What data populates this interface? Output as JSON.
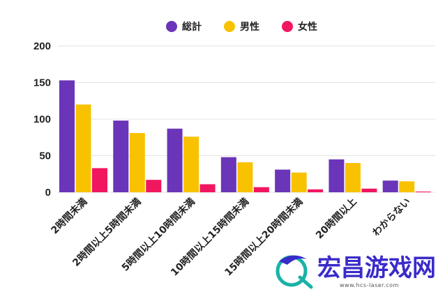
{
  "chart_data": {
    "type": "bar",
    "title": "",
    "xlabel": "",
    "ylabel": "",
    "ylim": [
      0,
      200
    ],
    "yticks": [
      0,
      50,
      100,
      150,
      200
    ],
    "grid": true,
    "legend_position": "top-center",
    "categories": [
      "2時間未満",
      "2時間以上5時間未満",
      "5時間以上10時間未満",
      "10時間以上15時間未満",
      "15時間以上20時間未満",
      "20時間以上",
      "わからない"
    ],
    "series": [
      {
        "name": "総計",
        "color": "#6a35b8",
        "values": [
          153,
          98,
          87,
          48,
          31,
          45,
          16
        ]
      },
      {
        "name": "男性",
        "color": "#f9c200",
        "values": [
          120,
          81,
          76,
          41,
          27,
          40,
          15
        ]
      },
      {
        "name": "女性",
        "color": "#f0175f",
        "values": [
          33,
          17,
          11,
          7,
          4,
          5,
          1
        ]
      }
    ]
  },
  "watermark": {
    "title": "宏昌游戏网",
    "url": "www.hcs-laser.com",
    "colors": {
      "text": "#3a2bc9",
      "logo": "#19b3a6"
    }
  }
}
